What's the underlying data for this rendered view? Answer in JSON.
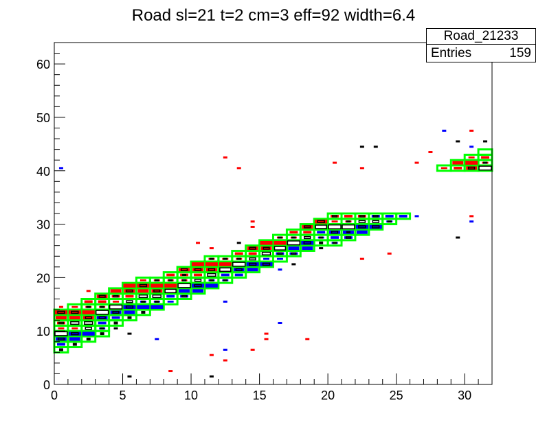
{
  "chart_data": {
    "type": "heatmap",
    "title": "Road sl=21 t=2 cm=3 eff=92 width=6.4",
    "xlim": [
      0,
      32
    ],
    "ylim": [
      0,
      64
    ],
    "xticks": [
      0,
      5,
      10,
      15,
      20,
      25,
      30
    ],
    "yticks": [
      0,
      10,
      20,
      30,
      40,
      50,
      60
    ],
    "grid": false,
    "colors": {
      "road": "#00ff00",
      "hit_a": "#ff0000",
      "hit_b": "#0000ff",
      "hit_c": "#000000"
    },
    "road_cells": [
      {
        "x": 0,
        "y": [
          6,
          14
        ],
        "hits": "sbBkrRrR"
      },
      {
        "x": 1,
        "y": [
          7,
          15
        ],
        "hits": "sbBrkrRr"
      },
      {
        "x": 2,
        "y": [
          8,
          16
        ],
        "hits": "sbkkRrRr"
      },
      {
        "x": 3,
        "y": [
          9,
          17
        ],
        "hits": "sBbBkRrR"
      },
      {
        "x": 4,
        "y": [
          11,
          18
        ],
        "hits": "sbBkrRr"
      },
      {
        "x": 5,
        "y": [
          12,
          19
        ],
        "hits": "sbBkrRr"
      },
      {
        "x": 6,
        "y": [
          13,
          20
        ],
        "hits": "sbBkrRr"
      },
      {
        "x": 7,
        "y": [
          14,
          20
        ],
        "hits": "bBkRrR"
      },
      {
        "x": 8,
        "y": [
          15,
          21
        ],
        "hits": "bbkrRr"
      },
      {
        "x": 9,
        "y": [
          16,
          22
        ],
        "hits": "BbkRrR"
      },
      {
        "x": 10,
        "y": [
          17,
          23
        ],
        "hits": "bBkrRr"
      },
      {
        "x": 11,
        "y": [
          18,
          24
        ],
        "hits": "bBkRrR"
      },
      {
        "x": 12,
        "y": [
          19,
          24
        ],
        "hits": "BbkrR"
      },
      {
        "x": 13,
        "y": [
          20,
          25
        ],
        "hits": "bBkRr"
      },
      {
        "x": 14,
        "y": [
          21,
          26
        ],
        "hits": "bBkrR"
      },
      {
        "x": 15,
        "y": [
          22,
          27
        ],
        "hits": "BbkRr"
      },
      {
        "x": 16,
        "y": [
          23,
          28
        ],
        "hits": "bBkrR"
      },
      {
        "x": 17,
        "y": [
          24,
          29
        ],
        "hits": "BbkRr"
      },
      {
        "x": 18,
        "y": [
          25,
          30
        ],
        "hits": "bBkrR"
      },
      {
        "x": 19,
        "y": [
          26,
          31
        ],
        "hits": "sBbkR"
      },
      {
        "x": 20,
        "y": [
          26,
          32
        ],
        "hits": "BbBkrR"
      },
      {
        "x": 21,
        "y": [
          27,
          32
        ],
        "hits": "BbkRr"
      },
      {
        "x": 22,
        "y": [
          28,
          32
        ],
        "hits": "bBkR"
      },
      {
        "x": 23,
        "y": [
          29,
          32
        ],
        "hits": "BkB"
      },
      {
        "x": 24,
        "y": [
          30,
          32
        ],
        "hits": "Bb"
      },
      {
        "x": 25,
        "y": [
          31,
          32
        ],
        "hits": "b"
      },
      {
        "x": 28,
        "y": [
          40,
          41
        ],
        "hits": "r"
      },
      {
        "x": 29,
        "y": [
          40,
          42
        ],
        "hits": "rr"
      },
      {
        "x": 30,
        "y": [
          40,
          43
        ],
        "hits": "Rrr"
      },
      {
        "x": 31,
        "y": [
          40,
          44
        ],
        "hits": "kRr."
      }
    ],
    "stray_hits": [
      [
        0.5,
        40.5,
        "b"
      ],
      [
        0.5,
        14.5,
        "r"
      ],
      [
        2.5,
        17.5,
        "r"
      ],
      [
        12.5,
        42.5,
        "r"
      ],
      [
        13.5,
        40.5,
        "r"
      ],
      [
        22.5,
        44.5,
        "k"
      ],
      [
        23.5,
        44.5,
        "k"
      ],
      [
        22.5,
        40.5,
        "r"
      ],
      [
        20.5,
        41.5,
        "r"
      ],
      [
        26.5,
        41.5,
        "r"
      ],
      [
        27.5,
        43.5,
        "r"
      ],
      [
        28.5,
        47.5,
        "b"
      ],
      [
        30.5,
        47.5,
        "r"
      ],
      [
        29.5,
        45.5,
        "k"
      ],
      [
        30.5,
        44.5,
        "b"
      ],
      [
        31.5,
        45.5,
        "k"
      ],
      [
        30.5,
        31.5,
        "r"
      ],
      [
        30.5,
        30.5,
        "b"
      ],
      [
        29.5,
        27.5,
        "k"
      ],
      [
        26.5,
        31.5,
        "b"
      ],
      [
        22.5,
        23.5,
        "r"
      ],
      [
        24.5,
        24.5,
        "r"
      ],
      [
        15.5,
        9.5,
        "r"
      ],
      [
        15.5,
        8.5,
        "r"
      ],
      [
        18.5,
        8.5,
        "r"
      ],
      [
        16.5,
        11.5,
        "b"
      ],
      [
        14.5,
        6.5,
        "r"
      ],
      [
        12.5,
        6.5,
        "b"
      ],
      [
        11.5,
        5.5,
        "r"
      ],
      [
        12.5,
        4.5,
        "r"
      ],
      [
        8.5,
        2.5,
        "r"
      ],
      [
        5.5,
        1.5,
        "k"
      ],
      [
        11.5,
        1.5,
        "k"
      ],
      [
        7.5,
        8.5,
        "b"
      ],
      [
        12.5,
        15.5,
        "b"
      ],
      [
        5.5,
        9.5,
        "k"
      ],
      [
        4.5,
        10.5,
        "k"
      ],
      [
        10.5,
        26.5,
        "r"
      ],
      [
        11.5,
        25.5,
        "r"
      ],
      [
        14.5,
        30.5,
        "r"
      ],
      [
        14.5,
        29.5,
        "r"
      ],
      [
        13.5,
        26.5,
        "k"
      ],
      [
        9.5,
        20.5,
        "k"
      ],
      [
        8.5,
        20.5,
        "r"
      ],
      [
        17.5,
        22.5,
        "k"
      ],
      [
        19.5,
        25.5,
        "k"
      ],
      [
        21.5,
        28.5,
        "k"
      ],
      [
        16.5,
        21.5,
        "b"
      ]
    ]
  },
  "stats": {
    "name": "Road_21233",
    "entries_label": "Entries",
    "entries_value": "159"
  }
}
